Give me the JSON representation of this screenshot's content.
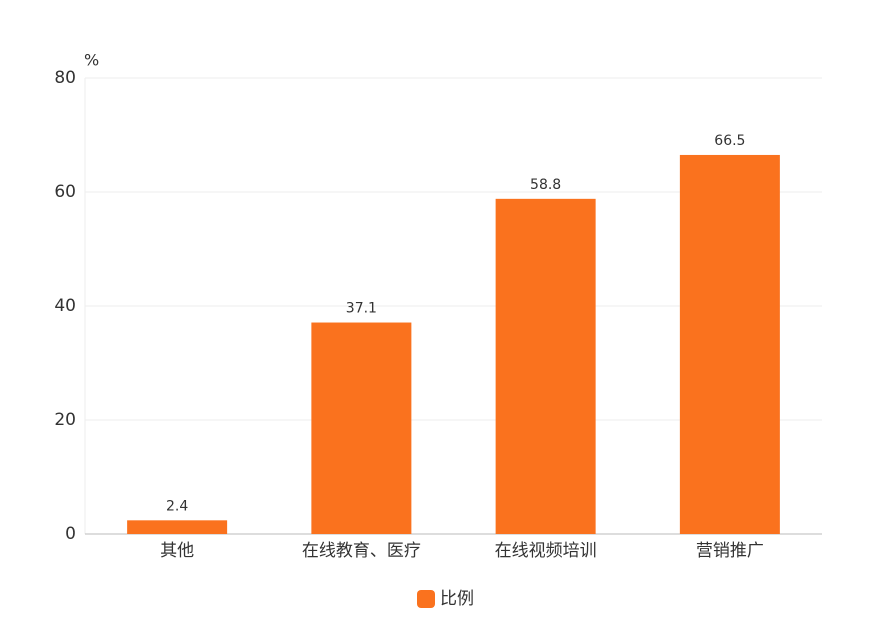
{
  "chart_data": {
    "type": "bar",
    "y_unit": "%",
    "categories": [
      "其他",
      "在线教育、医疗",
      "在线视频培训",
      "营销推广"
    ],
    "series": [
      {
        "name": "比例",
        "color": "#fa721e",
        "values": [
          2.4,
          37.1,
          58.8,
          66.5
        ]
      }
    ],
    "ylim": [
      0,
      80
    ],
    "yticks": [
      0,
      20,
      40,
      60,
      80
    ],
    "grid": true,
    "legend": "bottom"
  }
}
